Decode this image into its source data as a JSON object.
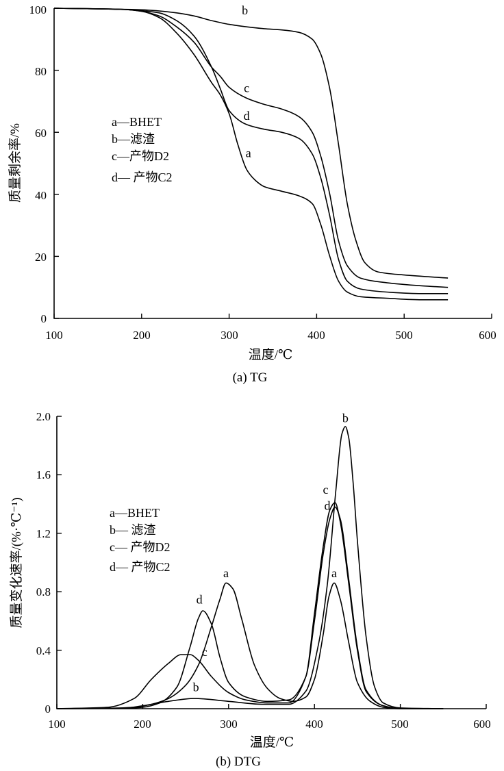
{
  "chart_data": [
    {
      "type": "line",
      "title": "(a) TG",
      "xlabel": "温度/℃",
      "ylabel": "质量剩余率/%",
      "xlim": [
        100,
        600
      ],
      "ylim": [
        0,
        100
      ],
      "xticks": [
        "100",
        "200",
        "300",
        "400",
        "500",
        "600"
      ],
      "yticks": [
        "0",
        "20",
        "40",
        "60",
        "80",
        "100"
      ],
      "legend": [
        "a—BHET",
        "b—滤渣",
        "c—产物D2",
        "d— 产物C2"
      ],
      "series": [
        {
          "name": "a",
          "label_at": [
            322,
            52
          ],
          "x": [
            100,
            180,
            200,
            220,
            240,
            260,
            280,
            290,
            300,
            310,
            320,
            330,
            340,
            360,
            380,
            395,
            405,
            415,
            425,
            435,
            450,
            480,
            520,
            550
          ],
          "y": [
            100,
            99.6,
            99,
            97,
            92,
            85,
            76,
            72,
            66,
            56,
            48,
            44.5,
            42.5,
            41,
            39.5,
            37,
            30,
            20,
            12,
            8.5,
            7,
            6.5,
            6,
            6
          ]
        },
        {
          "name": "b",
          "label_at": [
            318,
            98
          ],
          "x": [
            100,
            200,
            240,
            260,
            280,
            300,
            320,
            340,
            360,
            380,
            395,
            405,
            415,
            425,
            435,
            445,
            455,
            470,
            500,
            550
          ],
          "y": [
            100,
            99.5,
            98.5,
            97.5,
            96,
            94.8,
            94,
            93.4,
            93,
            92.2,
            90,
            85,
            74,
            56,
            37,
            25,
            18,
            15,
            14,
            13
          ]
        },
        {
          "name": "c",
          "label_at": [
            320,
            73
          ],
          "x": [
            100,
            180,
            200,
            220,
            240,
            260,
            280,
            290,
            300,
            320,
            340,
            360,
            380,
            395,
            405,
            415,
            425,
            435,
            450,
            480,
            520,
            550
          ],
          "y": [
            100,
            99.6,
            99,
            97.5,
            94,
            89,
            81,
            78,
            74.5,
            71,
            69,
            67.5,
            65,
            60,
            52,
            40,
            25,
            17,
            13,
            11.5,
            10.5,
            10
          ]
        },
        {
          "name": "d",
          "label_at": [
            320,
            64
          ],
          "x": [
            100,
            180,
            200,
            220,
            240,
            260,
            280,
            290,
            300,
            320,
            340,
            360,
            380,
            395,
            405,
            415,
            425,
            435,
            450,
            480,
            520,
            550
          ],
          "y": [
            100,
            99.6,
            99.2,
            98.5,
            96,
            91,
            81,
            74,
            67,
            62.5,
            61,
            60,
            58,
            53,
            45,
            33,
            19,
            12,
            9.5,
            8.5,
            8,
            8
          ]
        }
      ]
    },
    {
      "type": "line",
      "title": "(b) DTG",
      "xlabel": "温度/℃",
      "ylabel": "质量变化速率/(%·℃⁻¹)",
      "xlim": [
        100,
        600
      ],
      "ylim": [
        0,
        2.0
      ],
      "xticks": [
        "100",
        "200",
        "300",
        "400",
        "500",
        "600"
      ],
      "yticks": [
        "0",
        "0.4",
        "0.8",
        "1.2",
        "1.6",
        "2.0"
      ],
      "legend": [
        "a—BHET",
        "b— 滤渣",
        "c— 产物D2",
        "d— 产物C2"
      ],
      "series": [
        {
          "name": "a",
          "labels_at": [
            [
              297,
              0.9
            ],
            [
              423,
              0.9
            ]
          ],
          "x": [
            100,
            160,
            190,
            210,
            230,
            250,
            265,
            280,
            290,
            297,
            305,
            315,
            330,
            345,
            360,
            375,
            390,
            400,
            410,
            417,
            423,
            430,
            440,
            450,
            465,
            480,
            500,
            550
          ],
          "y": [
            0,
            0.003,
            0.01,
            0.03,
            0.07,
            0.16,
            0.3,
            0.56,
            0.75,
            0.86,
            0.82,
            0.62,
            0.3,
            0.14,
            0.07,
            0.05,
            0.08,
            0.2,
            0.5,
            0.77,
            0.86,
            0.75,
            0.45,
            0.18,
            0.05,
            0.01,
            0,
            0
          ]
        },
        {
          "name": "b",
          "labels_at": [
            [
              262,
              0.12
            ],
            [
              436,
              1.96
            ]
          ],
          "x": [
            100,
            180,
            200,
            230,
            260,
            300,
            340,
            370,
            390,
            405,
            415,
            425,
            432,
            436,
            440,
            445,
            450,
            460,
            470,
            480,
            500,
            550
          ],
          "y": [
            0,
            0.005,
            0.02,
            0.05,
            0.07,
            0.05,
            0.03,
            0.03,
            0.12,
            0.45,
            0.85,
            1.5,
            1.88,
            1.93,
            1.85,
            1.55,
            1.15,
            0.5,
            0.15,
            0.04,
            0.005,
            0
          ]
        },
        {
          "name": "c",
          "labels_at": [
            [
              272,
              0.36
            ],
            [
              413,
              1.47
            ]
          ],
          "x": [
            100,
            160,
            190,
            210,
            230,
            245,
            255,
            265,
            280,
            300,
            320,
            345,
            370,
            390,
            400,
            410,
            418,
            424,
            430,
            440,
            450,
            460,
            480,
            500,
            550
          ],
          "y": [
            0,
            0.01,
            0.07,
            0.2,
            0.31,
            0.37,
            0.37,
            0.33,
            0.22,
            0.11,
            0.06,
            0.04,
            0.04,
            0.22,
            0.65,
            1.1,
            1.36,
            1.41,
            1.28,
            0.85,
            0.4,
            0.12,
            0.02,
            0,
            0
          ]
        },
        {
          "name": "d",
          "labels_at": [
            [
              266,
              0.72
            ],
            [
              415,
              1.36
            ]
          ],
          "x": [
            100,
            180,
            200,
            220,
            240,
            255,
            265,
            270,
            280,
            290,
            300,
            320,
            345,
            370,
            390,
            400,
            410,
            418,
            424,
            430,
            440,
            450,
            460,
            480,
            500,
            550
          ],
          "y": [
            0,
            0.003,
            0.01,
            0.04,
            0.15,
            0.42,
            0.62,
            0.67,
            0.58,
            0.35,
            0.18,
            0.08,
            0.05,
            0.06,
            0.22,
            0.6,
            1.05,
            1.3,
            1.38,
            1.3,
            0.88,
            0.42,
            0.13,
            0.02,
            0,
            0
          ]
        }
      ]
    }
  ]
}
